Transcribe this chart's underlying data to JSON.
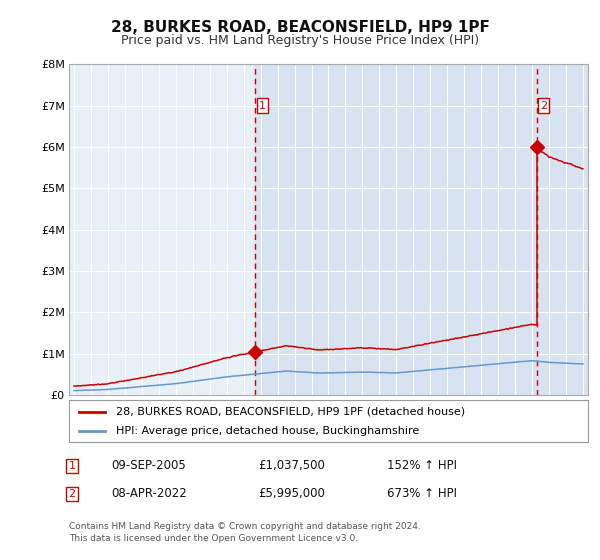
{
  "title": "28, BURKES ROAD, BEACONSFIELD, HP9 1PF",
  "subtitle": "Price paid vs. HM Land Registry's House Price Index (HPI)",
  "background_color": "#ffffff",
  "plot_bg_color": "#e8f0f8",
  "x_start_year": 1995,
  "x_end_year": 2025,
  "y_min": 0,
  "y_max": 8000000,
  "y_ticks": [
    0,
    1000000,
    2000000,
    3000000,
    4000000,
    5000000,
    6000000,
    7000000,
    8000000
  ],
  "y_tick_labels": [
    "£0",
    "£1M",
    "£2M",
    "£3M",
    "£4M",
    "£5M",
    "£6M",
    "£7M",
    "£8M"
  ],
  "sale1_year": 2005.69,
  "sale1_price": 1037500,
  "sale2_year": 2022.27,
  "sale2_price": 5995000,
  "legend_label1": "28, BURKES ROAD, BEACONSFIELD, HP9 1PF (detached house)",
  "legend_label2": "HPI: Average price, detached house, Buckinghamshire",
  "annotation1_date": "09-SEP-2005",
  "annotation1_price": "£1,037,500",
  "annotation1_hpi": "152% ↑ HPI",
  "annotation2_date": "08-APR-2022",
  "annotation2_price": "£5,995,000",
  "annotation2_hpi": "673% ↑ HPI",
  "footer": "Contains HM Land Registry data © Crown copyright and database right 2024.\nThis data is licensed under the Open Government Licence v3.0.",
  "line_color_red": "#cc0000",
  "line_color_blue": "#6699cc",
  "grid_color": "#d0d8e0"
}
